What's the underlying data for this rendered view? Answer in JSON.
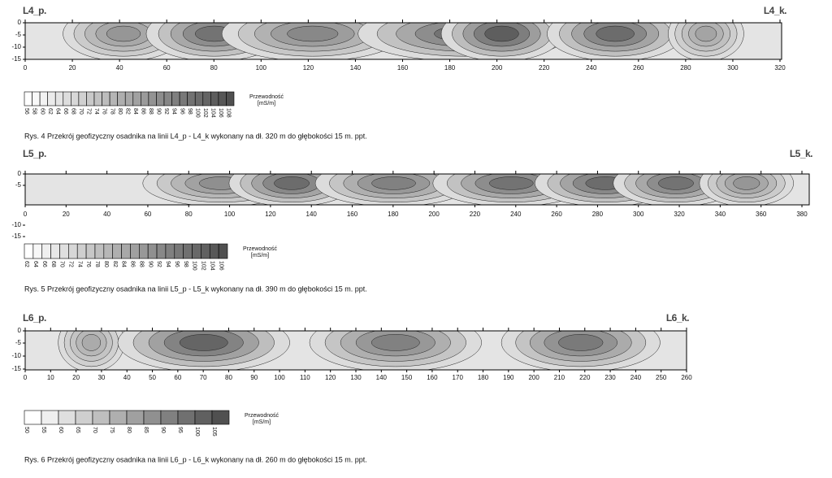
{
  "figures": [
    {
      "start_label": "L4_p.",
      "end_label": "L4_k.",
      "yticks": [
        0,
        -5,
        -10,
        -15
      ],
      "xticks": [
        0,
        20,
        40,
        60,
        80,
        100,
        120,
        140,
        160,
        180,
        200,
        220,
        240,
        260,
        280,
        300,
        320
      ],
      "scale": [
        56,
        58,
        60,
        62,
        64,
        66,
        68,
        70,
        72,
        74,
        76,
        78,
        80,
        82,
        84,
        86,
        88,
        90,
        92,
        94,
        96,
        98,
        100,
        102,
        104,
        106,
        108
      ],
      "scale_title": "Przewodność",
      "scale_unit": "[mS/m]",
      "caption": "Rys. 4 Przekrój geofizyczny osadnika na linii L4_p - L4_k wykonany na dł. 320 m do głębokości 15 m. ppt."
    },
    {
      "start_label": "L5_p.",
      "end_label": "L5_k.",
      "yticks": [
        0,
        -5,
        -10,
        -15
      ],
      "xticks": [
        0,
        20,
        40,
        60,
        80,
        100,
        120,
        140,
        160,
        180,
        200,
        220,
        240,
        260,
        280,
        300,
        320,
        340,
        360,
        380
      ],
      "scale": [
        62,
        64,
        66,
        68,
        70,
        72,
        74,
        76,
        78,
        80,
        82,
        84,
        86,
        88,
        90,
        92,
        94,
        96,
        98,
        100,
        102,
        104,
        106
      ],
      "scale_title": "Przewodność",
      "scale_unit": "[mS/m]",
      "caption": "Rys. 5 Przekrój geofizyczny osadnika na linii L5_p - L5_k wykonany na dł. 390 m do głębokości 15 m. ppt."
    },
    {
      "start_label": "L6_p.",
      "end_label": "L6_k.",
      "yticks": [
        0,
        -5,
        -10,
        -15
      ],
      "xticks": [
        0,
        10,
        20,
        30,
        40,
        50,
        60,
        70,
        80,
        90,
        100,
        110,
        120,
        130,
        140,
        150,
        160,
        170,
        180,
        190,
        200,
        210,
        220,
        230,
        240,
        250,
        260
      ],
      "scale": [
        50,
        55,
        60,
        65,
        70,
        75,
        80,
        85,
        90,
        95,
        100,
        105
      ],
      "scale_title": "Przewodność",
      "scale_unit": "[mS/m]",
      "caption": "Rys. 6 Przekrój geofizyczny osadnika na linii L6_p - L6_k wykonany na dł. 260 m do głębokości 15 m. ppt."
    }
  ]
}
